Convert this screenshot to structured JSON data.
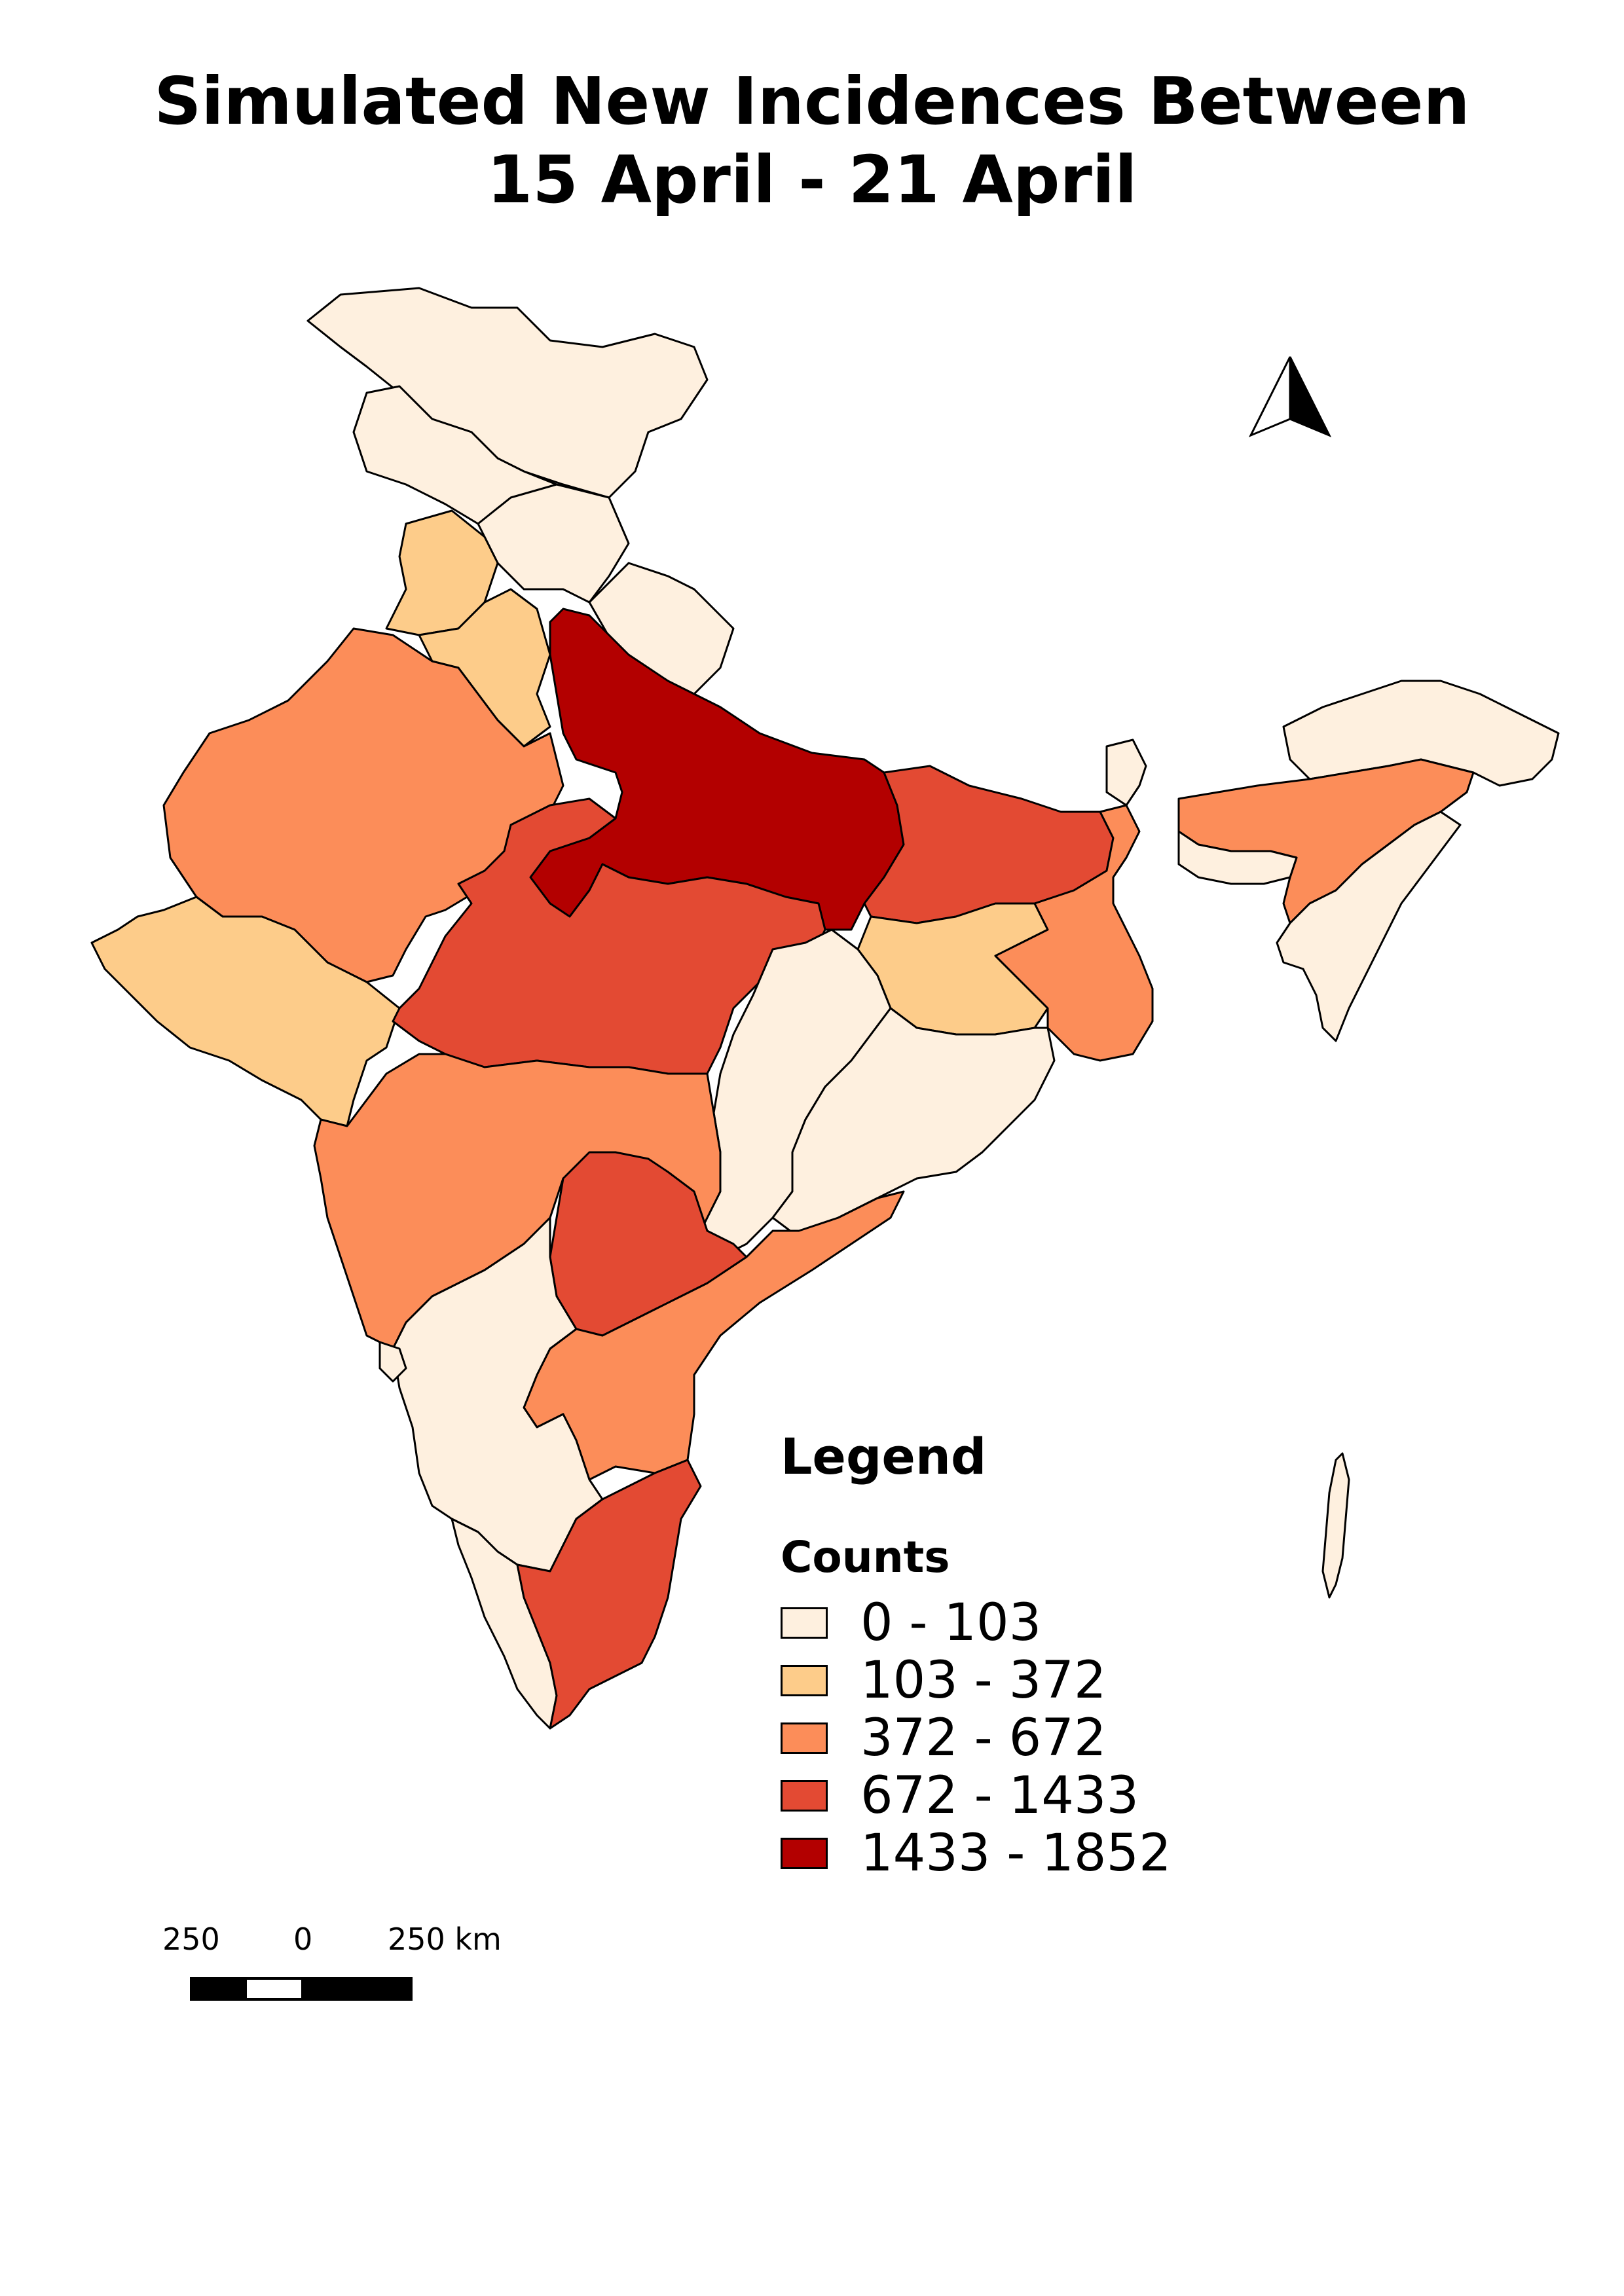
{
  "title": {
    "line1": "Simulated New Incidences Between",
    "line2": "15 April - 21 April"
  },
  "legend": {
    "heading": "Legend",
    "subheading": "Counts",
    "classes": [
      {
        "label": "0 - 103",
        "color": "#fef0df"
      },
      {
        "label": "103 - 372",
        "color": "#fdcc8a"
      },
      {
        "label": "372 - 672",
        "color": "#fc8d59"
      },
      {
        "label": "672 - 1433",
        "color": "#e34a33"
      },
      {
        "label": "1433 - 1852",
        "color": "#b30000"
      }
    ]
  },
  "scale_bar": {
    "labels": [
      "250",
      "0",
      "250 km"
    ]
  },
  "north_arrow": {
    "icon": "north-arrow-icon"
  },
  "regions": [
    {
      "name": "jammu-kashmir-ladakh",
      "class": 0
    },
    {
      "name": "himachal-pradesh",
      "class": 0
    },
    {
      "name": "punjab",
      "class": 1
    },
    {
      "name": "uttarakhand",
      "class": 0
    },
    {
      "name": "haryana",
      "class": 1
    },
    {
      "name": "rajasthan",
      "class": 2
    },
    {
      "name": "uttar-pradesh",
      "class": 4
    },
    {
      "name": "bihar",
      "class": 3
    },
    {
      "name": "gujarat",
      "class": 1
    },
    {
      "name": "madhya-pradesh",
      "class": 3
    },
    {
      "name": "jharkhand",
      "class": 1
    },
    {
      "name": "west-bengal",
      "class": 2
    },
    {
      "name": "sikkim",
      "class": 0
    },
    {
      "name": "assam",
      "class": 2
    },
    {
      "name": "arunachal-pradesh",
      "class": 0
    },
    {
      "name": "meghalaya",
      "class": 0
    },
    {
      "name": "north-east-small-states",
      "class": 0
    },
    {
      "name": "chhattisgarh",
      "class": 0
    },
    {
      "name": "odisha",
      "class": 0
    },
    {
      "name": "maharashtra",
      "class": 2
    },
    {
      "name": "telangana",
      "class": 3
    },
    {
      "name": "andhra-pradesh",
      "class": 2
    },
    {
      "name": "karnataka",
      "class": 0
    },
    {
      "name": "goa",
      "class": 0
    },
    {
      "name": "kerala",
      "class": 0
    },
    {
      "name": "tamil-nadu",
      "class": 3
    },
    {
      "name": "andaman-nicobar",
      "class": 0
    }
  ]
}
